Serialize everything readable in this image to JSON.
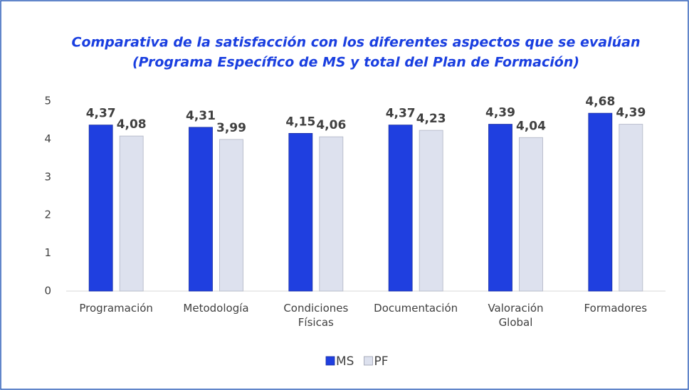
{
  "chart_data": {
    "type": "bar",
    "title": "Comparativa de la satisfacción con los diferentes aspectos que se evalúan",
    "subtitle": "(Programa Específico de MS y total del Plan de Formación)",
    "categories": [
      "Programación",
      "Metodología",
      "Condiciones Físicas",
      "Documentación",
      "Valoración Global",
      "Formadores"
    ],
    "series": [
      {
        "name": "MS",
        "color": "#1f3fe0",
        "values": [
          4.37,
          4.31,
          4.15,
          4.37,
          4.39,
          4.68
        ],
        "value_labels": [
          "4,37",
          "4,31",
          "4,15",
          "4,37",
          "4,39",
          "4,68"
        ]
      },
      {
        "name": "PF",
        "color": "#dde1ee",
        "values": [
          4.08,
          3.99,
          4.06,
          4.23,
          4.04,
          4.39
        ],
        "value_labels": [
          "4,08",
          "3,99",
          "4,06",
          "4,23",
          "4,04",
          "4,39"
        ]
      }
    ],
    "ylim": [
      0,
      5
    ],
    "yticks": [
      0,
      1,
      2,
      3,
      4,
      5
    ],
    "grid": false,
    "legend": "bottom"
  }
}
